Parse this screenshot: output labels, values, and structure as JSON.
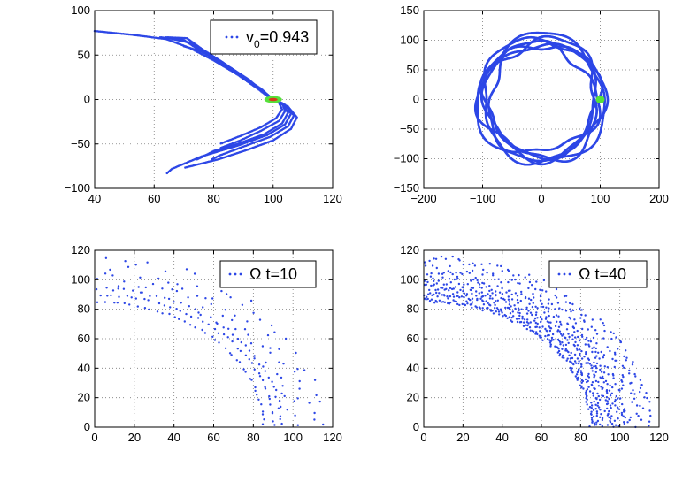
{
  "figure": {
    "layout": "2x2 subplot grid"
  },
  "colors": {
    "points": "#2d47e6",
    "start_fill": "#56e03a",
    "start_center": "#d63a1a",
    "grid": "#7a7a7a",
    "axes": "#000000"
  },
  "chart_data": [
    {
      "id": "tl",
      "type": "scatter",
      "title": "",
      "xlim": [
        40,
        120
      ],
      "ylim": [
        -100,
        100
      ],
      "xticks": [
        "40",
        "60",
        "80",
        "100",
        "120"
      ],
      "yticks": [
        "100",
        "50",
        "0",
        "−50",
        "−100"
      ],
      "legend": {
        "text": "v",
        "sub": "0",
        "suffix": "=0.943",
        "placement": "top-right"
      },
      "grid": true,
      "start_marker": {
        "x": 100,
        "y": 0
      },
      "trajectories": [
        [
          [
            40,
            77
          ],
          [
            52,
            73
          ],
          [
            64,
            68
          ],
          [
            72,
            58
          ],
          [
            80,
            44
          ],
          [
            88,
            28
          ],
          [
            94,
            14
          ],
          [
            98,
            4
          ],
          [
            100,
            0
          ],
          [
            104,
            -6
          ],
          [
            106,
            -16
          ],
          [
            104,
            -28
          ],
          [
            98,
            -40
          ],
          [
            88,
            -52
          ],
          [
            76,
            -64
          ],
          [
            66,
            -78
          ],
          [
            64,
            -84
          ]
        ],
        [
          [
            62,
            70
          ],
          [
            70,
            67
          ],
          [
            75,
            56
          ],
          [
            82,
            42
          ],
          [
            89,
            27
          ],
          [
            95,
            13
          ],
          [
            99,
            3
          ],
          [
            100,
            0
          ],
          [
            103,
            -5
          ],
          [
            105,
            -15
          ],
          [
            103,
            -27
          ],
          [
            97,
            -39
          ],
          [
            88,
            -50
          ],
          [
            80,
            -58
          ],
          [
            76,
            -65
          ],
          [
            74,
            -68
          ]
        ],
        [
          [
            64,
            70
          ],
          [
            71,
            69
          ],
          [
            76,
            57
          ],
          [
            83,
            42
          ],
          [
            90,
            26
          ],
          [
            95,
            12
          ],
          [
            99,
            3
          ],
          [
            100,
            0
          ],
          [
            104,
            -7
          ],
          [
            107,
            -18
          ],
          [
            105,
            -30
          ],
          [
            99,
            -42
          ],
          [
            90,
            -53
          ],
          [
            82,
            -63
          ],
          [
            79,
            -68
          ]
        ],
        [
          [
            66,
            68
          ],
          [
            72,
            64
          ],
          [
            77,
            53
          ],
          [
            84,
            39
          ],
          [
            90,
            25
          ],
          [
            96,
            12
          ],
          [
            99,
            3
          ],
          [
            100,
            0
          ],
          [
            103,
            -4
          ],
          [
            104,
            -13
          ],
          [
            102,
            -24
          ],
          [
            96,
            -35
          ],
          [
            89,
            -46
          ],
          [
            82,
            -55
          ]
        ],
        [
          [
            68,
            68
          ],
          [
            73,
            62
          ],
          [
            78,
            51
          ],
          [
            85,
            37
          ],
          [
            91,
            24
          ],
          [
            96,
            11
          ],
          [
            99,
            2
          ],
          [
            100,
            0
          ],
          [
            105,
            -8
          ],
          [
            108,
            -20
          ],
          [
            106,
            -33
          ],
          [
            100,
            -46
          ],
          [
            91,
            -57
          ],
          [
            82,
            -67
          ],
          [
            70,
            -77
          ]
        ],
        [
          [
            70,
            60
          ],
          [
            75,
            55
          ],
          [
            80,
            47
          ],
          [
            86,
            35
          ],
          [
            92,
            22
          ],
          [
            96,
            10
          ],
          [
            99,
            2
          ],
          [
            100,
            0
          ],
          [
            102,
            -4
          ],
          [
            103,
            -11
          ],
          [
            101,
            -21
          ],
          [
            96,
            -31
          ],
          [
            89,
            -41
          ],
          [
            82,
            -50
          ]
        ]
      ]
    },
    {
      "id": "tr",
      "type": "scatter",
      "title": "",
      "xlim": [
        -200,
        200
      ],
      "ylim": [
        -150,
        150
      ],
      "xticks": [
        "−200",
        "−100",
        "0",
        "100",
        "200"
      ],
      "yticks": [
        "150",
        "100",
        "50",
        "0",
        "−50",
        "−100",
        "−150"
      ],
      "grid": true,
      "start_marker": {
        "x": 100,
        "y": 0
      },
      "rings": [
        {
          "radius": 97,
          "wobble": 9,
          "phase": 0.0
        },
        {
          "radius": 103,
          "wobble": 8,
          "phase": 1.1
        },
        {
          "radius": 92,
          "wobble": 10,
          "phase": 2.3
        },
        {
          "radius": 108,
          "wobble": 7,
          "phase": 3.4
        },
        {
          "radius": 100,
          "wobble": 11,
          "phase": 4.6
        },
        {
          "radius": 95,
          "wobble": 6,
          "phase": 5.5
        }
      ]
    },
    {
      "id": "bl",
      "type": "scatter",
      "title": "",
      "xlim": [
        0,
        120
      ],
      "ylim": [
        0,
        120
      ],
      "xticks": [
        "0",
        "20",
        "40",
        "60",
        "80",
        "100",
        "120"
      ],
      "yticks": [
        "120",
        "100",
        "80",
        "60",
        "40",
        "20",
        "0"
      ],
      "legend": {
        "text": "Ω t=10",
        "placement": "top-right"
      },
      "grid": true,
      "arcs": [
        {
          "radius": 85,
          "count": 40,
          "jitter": 0.6
        },
        {
          "radius": 90,
          "count": 42,
          "jitter": 0.8
        },
        {
          "radius": 94,
          "count": 44,
          "jitter": 1.0
        },
        {
          "radius": 100,
          "count": 34,
          "jitter": 3.5
        },
        {
          "radius": 108,
          "count": 30,
          "jitter": 5.0
        },
        {
          "radius": 114,
          "count": 18,
          "jitter": 3.0
        }
      ]
    },
    {
      "id": "br",
      "type": "scatter",
      "title": "",
      "xlim": [
        0,
        120
      ],
      "ylim": [
        0,
        120
      ],
      "xticks": [
        "0",
        "20",
        "40",
        "60",
        "80",
        "100",
        "120"
      ],
      "yticks": [
        "120",
        "100",
        "80",
        "60",
        "40",
        "20",
        "0"
      ],
      "legend": {
        "text": "Ω t=40",
        "placement": "top-right"
      },
      "grid": true,
      "arcs": [
        {
          "radius": 86,
          "count": 140,
          "jitter": 1.5
        },
        {
          "radius": 90,
          "count": 150,
          "jitter": 2.0
        },
        {
          "radius": 95,
          "count": 150,
          "jitter": 2.0
        },
        {
          "radius": 100,
          "count": 130,
          "jitter": 3.0
        },
        {
          "radius": 106,
          "count": 120,
          "jitter": 4.0
        },
        {
          "radius": 113,
          "count": 90,
          "jitter": 4.0
        }
      ]
    }
  ]
}
